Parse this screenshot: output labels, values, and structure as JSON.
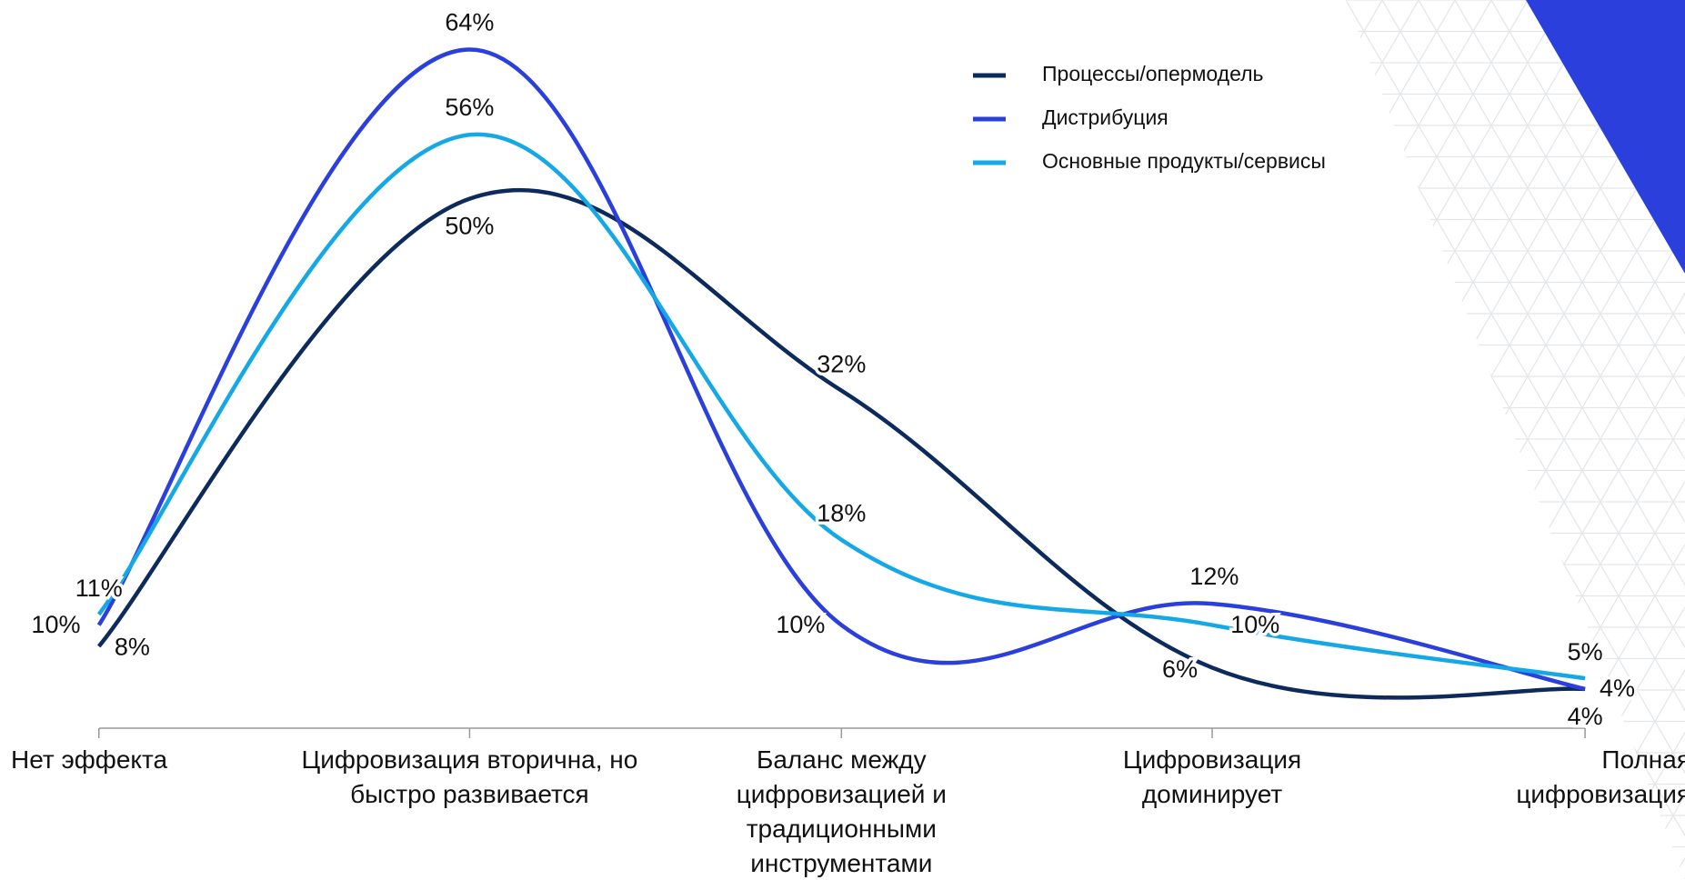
{
  "chart_data": {
    "type": "line",
    "categories": [
      "Нет эффекта",
      "Цифровизация вторична, но быстро развивается",
      "Баланс между цифровизацией и традиционными инструментами",
      "Цифровизация доминирует",
      "Полная цифровизация"
    ],
    "series": [
      {
        "name": "Процессы/опермодель",
        "color": "#0d2a5c",
        "values": [
          8,
          50,
          32,
          6,
          4
        ],
        "value_labels": [
          "8%",
          "50%",
          "32%",
          "6%",
          "4%"
        ]
      },
      {
        "name": "Дистрибуция",
        "color": "#2a3fdc",
        "values": [
          10,
          64,
          10,
          12,
          4
        ],
        "value_labels": [
          "10%",
          "64%",
          "10%",
          "12%",
          "4%"
        ]
      },
      {
        "name": "Основные продукты/сервисы",
        "color": "#14a8e6",
        "values": [
          11,
          56,
          18,
          10,
          5
        ],
        "value_labels": [
          "11%",
          "56%",
          "18%",
          "10%",
          "5%"
        ]
      }
    ],
    "legend": "top-right"
  }
}
